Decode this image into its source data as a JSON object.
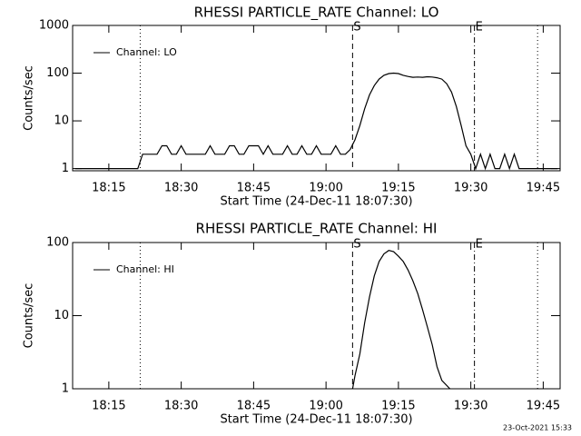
{
  "chart_data": [
    {
      "type": "line",
      "title": "RHESSI PARTICLE_RATE Channel: LO",
      "x_label": "Start Time (24-Dec-11 18:07:30)",
      "y_label": "Counts/sec",
      "log_y": true,
      "legend": "upper left",
      "xlim": [
        "18:07:30",
        "19:48:30"
      ],
      "ylim": [
        0.9,
        1000
      ],
      "xticks": [
        "18:15",
        "18:30",
        "18:45",
        "19:00",
        "19:15",
        "19:30",
        "19:45"
      ],
      "yticks": [
        1,
        10,
        100,
        1000
      ],
      "markers": [
        {
          "x": "18:21:30",
          "style": "dotted"
        },
        {
          "x": "19:05:30",
          "style": "dashed",
          "label": "S"
        },
        {
          "x": "19:30:45",
          "style": "dashdot",
          "label": "E"
        },
        {
          "x": "19:43:50",
          "style": "dotted"
        }
      ],
      "series": [
        {
          "name": "Channel: LO",
          "color": "#000000",
          "x": [
            "18:08",
            "18:09",
            "18:10",
            "18:11",
            "18:12",
            "18:13",
            "18:14",
            "18:15",
            "18:16",
            "18:17",
            "18:18",
            "18:19",
            "18:20",
            "18:21",
            "18:22",
            "18:23",
            "18:24",
            "18:25",
            "18:26",
            "18:27",
            "18:28",
            "18:29",
            "18:30",
            "18:31",
            "18:32",
            "18:33",
            "18:34",
            "18:35",
            "18:36",
            "18:37",
            "18:38",
            "18:39",
            "18:40",
            "18:41",
            "18:42",
            "18:43",
            "18:44",
            "18:45",
            "18:46",
            "18:47",
            "18:48",
            "18:49",
            "18:50",
            "18:51",
            "18:52",
            "18:53",
            "18:54",
            "18:55",
            "18:56",
            "18:57",
            "18:58",
            "18:59",
            "19:00",
            "19:01",
            "19:02",
            "19:03",
            "19:04",
            "19:05",
            "19:06",
            "19:07",
            "19:08",
            "19:09",
            "19:10",
            "19:11",
            "19:12",
            "19:13",
            "19:14",
            "19:15",
            "19:16",
            "19:17",
            "19:18",
            "19:19",
            "19:20",
            "19:21",
            "19:22",
            "19:23",
            "19:24",
            "19:25",
            "19:26",
            "19:27",
            "19:28",
            "19:29",
            "19:30",
            "19:31",
            "19:32",
            "19:33",
            "19:34",
            "19:35",
            "19:36",
            "19:37",
            "19:38",
            "19:39",
            "19:40",
            "19:41",
            "19:42",
            "19:43",
            "19:44",
            "19:45",
            "19:46",
            "19:47",
            "19:48"
          ],
          "values": [
            1,
            1,
            1,
            1,
            1,
            1,
            1,
            1,
            1,
            1,
            1,
            1,
            1,
            1,
            2,
            2,
            2,
            2,
            3,
            3,
            2,
            2,
            3,
            2,
            2,
            2,
            2,
            2,
            3,
            2,
            2,
            2,
            3,
            3,
            2,
            2,
            3,
            3,
            3,
            2,
            3,
            2,
            2,
            2,
            3,
            2,
            2,
            3,
            2,
            2,
            3,
            2,
            2,
            2,
            3,
            2,
            2,
            2.5,
            4,
            8,
            18,
            35,
            55,
            75,
            90,
            98,
            100,
            98,
            90,
            85,
            82,
            83,
            82,
            84,
            83,
            80,
            75,
            60,
            40,
            20,
            8,
            3,
            2,
            1,
            2,
            1,
            2,
            1,
            1,
            2,
            1,
            2,
            1,
            1,
            1,
            1,
            1,
            1,
            1,
            1,
            1
          ]
        }
      ]
    },
    {
      "type": "line",
      "title": "RHESSI PARTICLE_RATE Channel: HI",
      "x_label": "Start Time (24-Dec-11 18:07:30)",
      "y_label": "Counts/sec",
      "log_y": true,
      "legend": "upper left",
      "xlim": [
        "18:07:30",
        "19:48:30"
      ],
      "ylim": [
        1,
        100
      ],
      "xticks": [
        "18:15",
        "18:30",
        "18:45",
        "19:00",
        "19:15",
        "19:30",
        "19:45"
      ],
      "yticks": [
        1,
        10,
        100
      ],
      "markers": [
        {
          "x": "18:21:30",
          "style": "dotted"
        },
        {
          "x": "19:05:30",
          "style": "dashed",
          "label": "S"
        },
        {
          "x": "19:30:45",
          "style": "dashdot",
          "label": "E"
        },
        {
          "x": "19:43:50",
          "style": "dotted"
        }
      ],
      "series": [
        {
          "name": "Channel: HI",
          "color": "#000000",
          "x": [
            "19:05:30",
            "19:06",
            "19:07",
            "19:08",
            "19:09",
            "19:10",
            "19:11",
            "19:12",
            "19:13",
            "19:14",
            "19:15",
            "19:16",
            "19:17",
            "19:18",
            "19:19",
            "19:20",
            "19:21",
            "19:22",
            "19:23",
            "19:24",
            "19:25:40"
          ],
          "values": [
            1,
            1.5,
            3,
            8,
            18,
            35,
            55,
            70,
            78,
            75,
            65,
            55,
            42,
            30,
            20,
            12,
            7,
            4,
            2,
            1.3,
            1
          ]
        }
      ]
    }
  ],
  "footer": "23-Oct-2021 15:33"
}
